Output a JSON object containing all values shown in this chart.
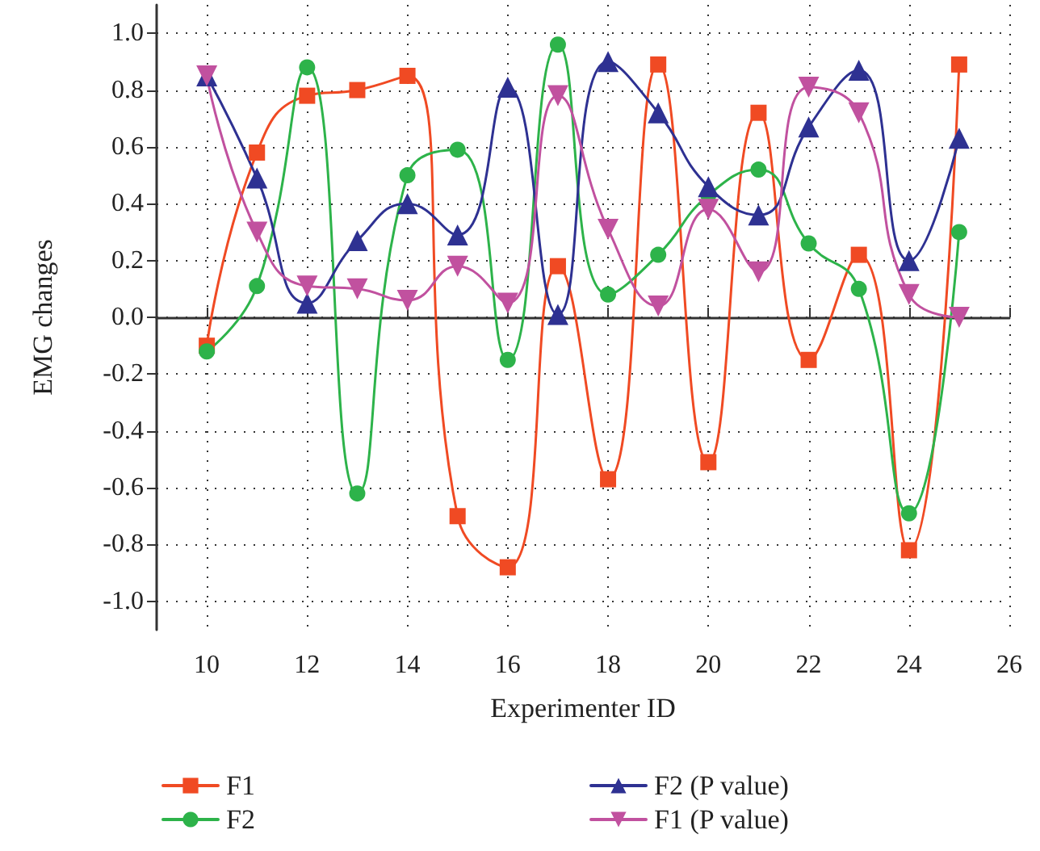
{
  "chart_data": {
    "type": "line",
    "xlabel": "Experimenter ID",
    "ylabel": "EMG changes",
    "x": [
      10,
      11,
      12,
      13,
      14,
      15,
      16,
      17,
      18,
      19,
      20,
      21,
      22,
      23,
      24,
      25
    ],
    "series": [
      {
        "name": "F1",
        "color": "#f04a23",
        "marker": "square",
        "values": [
          -0.1,
          0.58,
          0.78,
          0.8,
          0.85,
          -0.7,
          -0.88,
          0.18,
          -0.57,
          0.89,
          -0.51,
          0.72,
          -0.15,
          0.22,
          -0.82,
          0.89
        ]
      },
      {
        "name": "F2",
        "color": "#2db34a",
        "marker": "circle",
        "values": [
          -0.12,
          0.11,
          0.88,
          -0.62,
          0.5,
          0.59,
          -0.15,
          0.96,
          0.08,
          0.22,
          0.43,
          0.52,
          0.26,
          0.1,
          -0.69,
          0.3
        ]
      },
      {
        "name": "F2 (P value)",
        "color": "#2e3192",
        "marker": "triangle",
        "values": [
          0.85,
          0.49,
          0.05,
          0.27,
          0.4,
          0.29,
          0.81,
          0.01,
          0.9,
          0.72,
          0.46,
          0.36,
          0.67,
          0.87,
          0.2,
          0.63
        ]
      },
      {
        "name": "F1 (P value)",
        "color": "#c1519f",
        "marker": "triangle-down",
        "values": [
          0.85,
          0.3,
          0.11,
          0.1,
          0.06,
          0.18,
          0.05,
          0.78,
          0.31,
          0.04,
          0.38,
          0.16,
          0.81,
          0.72,
          0.08,
          0.0
        ]
      }
    ],
    "xlim": [
      9,
      26
    ],
    "xticks": [
      10,
      12,
      14,
      16,
      18,
      20,
      22,
      24,
      26
    ],
    "ylim": [
      -1.1,
      1.1
    ],
    "yticks": [
      {
        "value": -1,
        "label": "-1.0"
      },
      {
        "value": -0.8,
        "label": "-0.8"
      },
      {
        "value": -0.6,
        "label": "-0.6"
      },
      {
        "value": -0.4,
        "label": "-0.4"
      },
      {
        "value": -0.2,
        "label": "-0.2"
      },
      {
        "value": 0,
        "label": "0.0"
      },
      {
        "value": 0.2,
        "label": "0.2"
      },
      {
        "value": 0.4,
        "label": "0.4"
      },
      {
        "value": 0.6,
        "label": "0.6"
      },
      {
        "value": 0.8,
        "label": "0.8"
      },
      {
        "value": 1,
        "label": "1.0"
      }
    ],
    "grid": true,
    "line_style": "solid",
    "legend": "bottom"
  }
}
